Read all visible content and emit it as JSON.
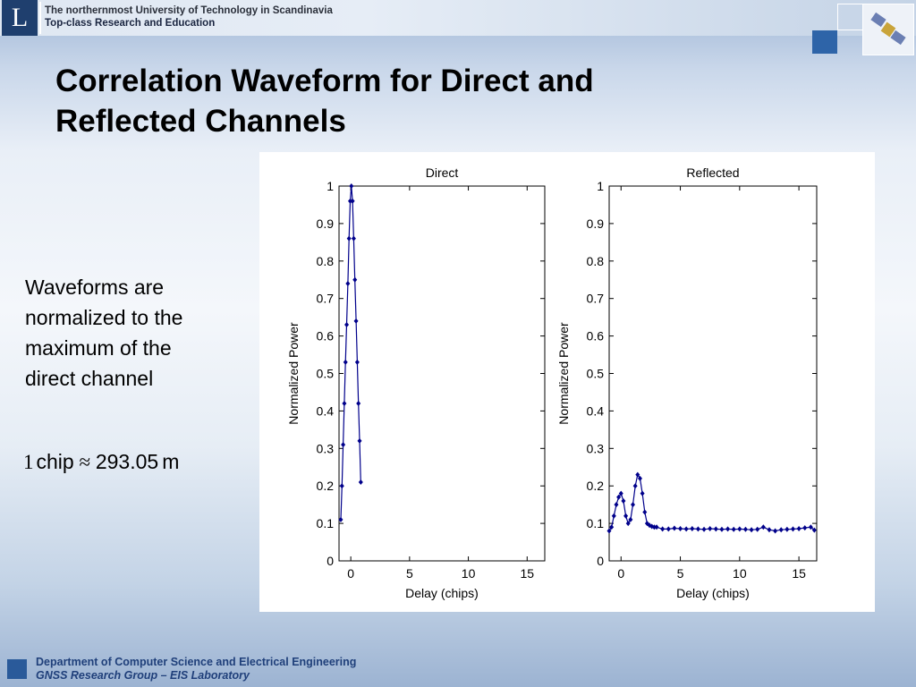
{
  "header": {
    "logo_letter": "L",
    "university_line1": "The northernmost University of Technology in Scandinavia",
    "university_line2": "Top-class Research and Education"
  },
  "slide": {
    "title_line1": "Correlation Waveform for Direct and",
    "title_line2": "Reflected Channels",
    "body_line1": "Waveforms are",
    "body_line2": "normalized to the",
    "body_line3": "maximum of the",
    "body_line4": "direct channel",
    "formula_num": "1",
    "formula_unit1": "chip",
    "formula_op": "≈",
    "formula_value": "293.05",
    "formula_unit2": "m"
  },
  "footer": {
    "line1": "Department of Computer Science and Electrical Engineering",
    "line2": "GNSS Research Group – EIS Laboratory"
  },
  "colors": {
    "series": "#00008b",
    "footer_text": "#1f3f7a",
    "logo_bg": "#1f3f6e"
  },
  "chart_data": [
    {
      "type": "line",
      "title": "Direct",
      "xlabel": "Delay (chips)",
      "ylabel": "Normalized Power",
      "xlim": [
        -1,
        16.5
      ],
      "ylim": [
        0,
        1
      ],
      "xticks": [
        0,
        5,
        10,
        15
      ],
      "yticks": [
        0,
        0.1,
        0.2,
        0.3,
        0.4,
        0.5,
        0.6,
        0.7,
        0.8,
        0.9,
        1
      ],
      "grid": false,
      "series": [
        {
          "x": [
            -0.85,
            -0.75,
            -0.65,
            -0.55,
            -0.45,
            -0.35,
            -0.25,
            -0.15,
            -0.05,
            0.05,
            0.15,
            0.25,
            0.35,
            0.45,
            0.55,
            0.65,
            0.75,
            0.85
          ],
          "values": [
            0.11,
            0.2,
            0.31,
            0.42,
            0.53,
            0.63,
            0.74,
            0.86,
            0.96,
            1.0,
            0.96,
            0.86,
            0.75,
            0.64,
            0.53,
            0.42,
            0.32,
            0.21
          ]
        }
      ]
    },
    {
      "type": "line",
      "title": "Reflected",
      "xlabel": "Delay (chips)",
      "ylabel": "Normalized Power",
      "xlim": [
        -1,
        16.5
      ],
      "ylim": [
        0,
        1
      ],
      "xticks": [
        0,
        5,
        10,
        15
      ],
      "yticks": [
        0,
        0.1,
        0.2,
        0.3,
        0.4,
        0.5,
        0.6,
        0.7,
        0.8,
        0.9,
        1
      ],
      "grid": false,
      "series": [
        {
          "x": [
            -1,
            -0.8,
            -0.6,
            -0.4,
            -0.2,
            0,
            0.2,
            0.4,
            0.6,
            0.8,
            1,
            1.2,
            1.4,
            1.6,
            1.8,
            2,
            2.2,
            2.4,
            2.6,
            2.8,
            3,
            3.5,
            4,
            4.5,
            5,
            5.5,
            6,
            6.5,
            7,
            7.5,
            8,
            8.5,
            9,
            9.5,
            10,
            10.5,
            11,
            11.5,
            12,
            12.5,
            13,
            13.5,
            14,
            14.5,
            15,
            15.5,
            16,
            16.3
          ],
          "values": [
            0.08,
            0.09,
            0.12,
            0.15,
            0.17,
            0.18,
            0.16,
            0.12,
            0.1,
            0.11,
            0.15,
            0.2,
            0.23,
            0.22,
            0.18,
            0.13,
            0.1,
            0.095,
            0.092,
            0.09,
            0.09,
            0.085,
            0.085,
            0.087,
            0.086,
            0.085,
            0.086,
            0.085,
            0.084,
            0.086,
            0.085,
            0.084,
            0.085,
            0.084,
            0.085,
            0.084,
            0.083,
            0.084,
            0.09,
            0.083,
            0.08,
            0.083,
            0.084,
            0.085,
            0.086,
            0.088,
            0.09,
            0.082
          ]
        }
      ]
    }
  ]
}
